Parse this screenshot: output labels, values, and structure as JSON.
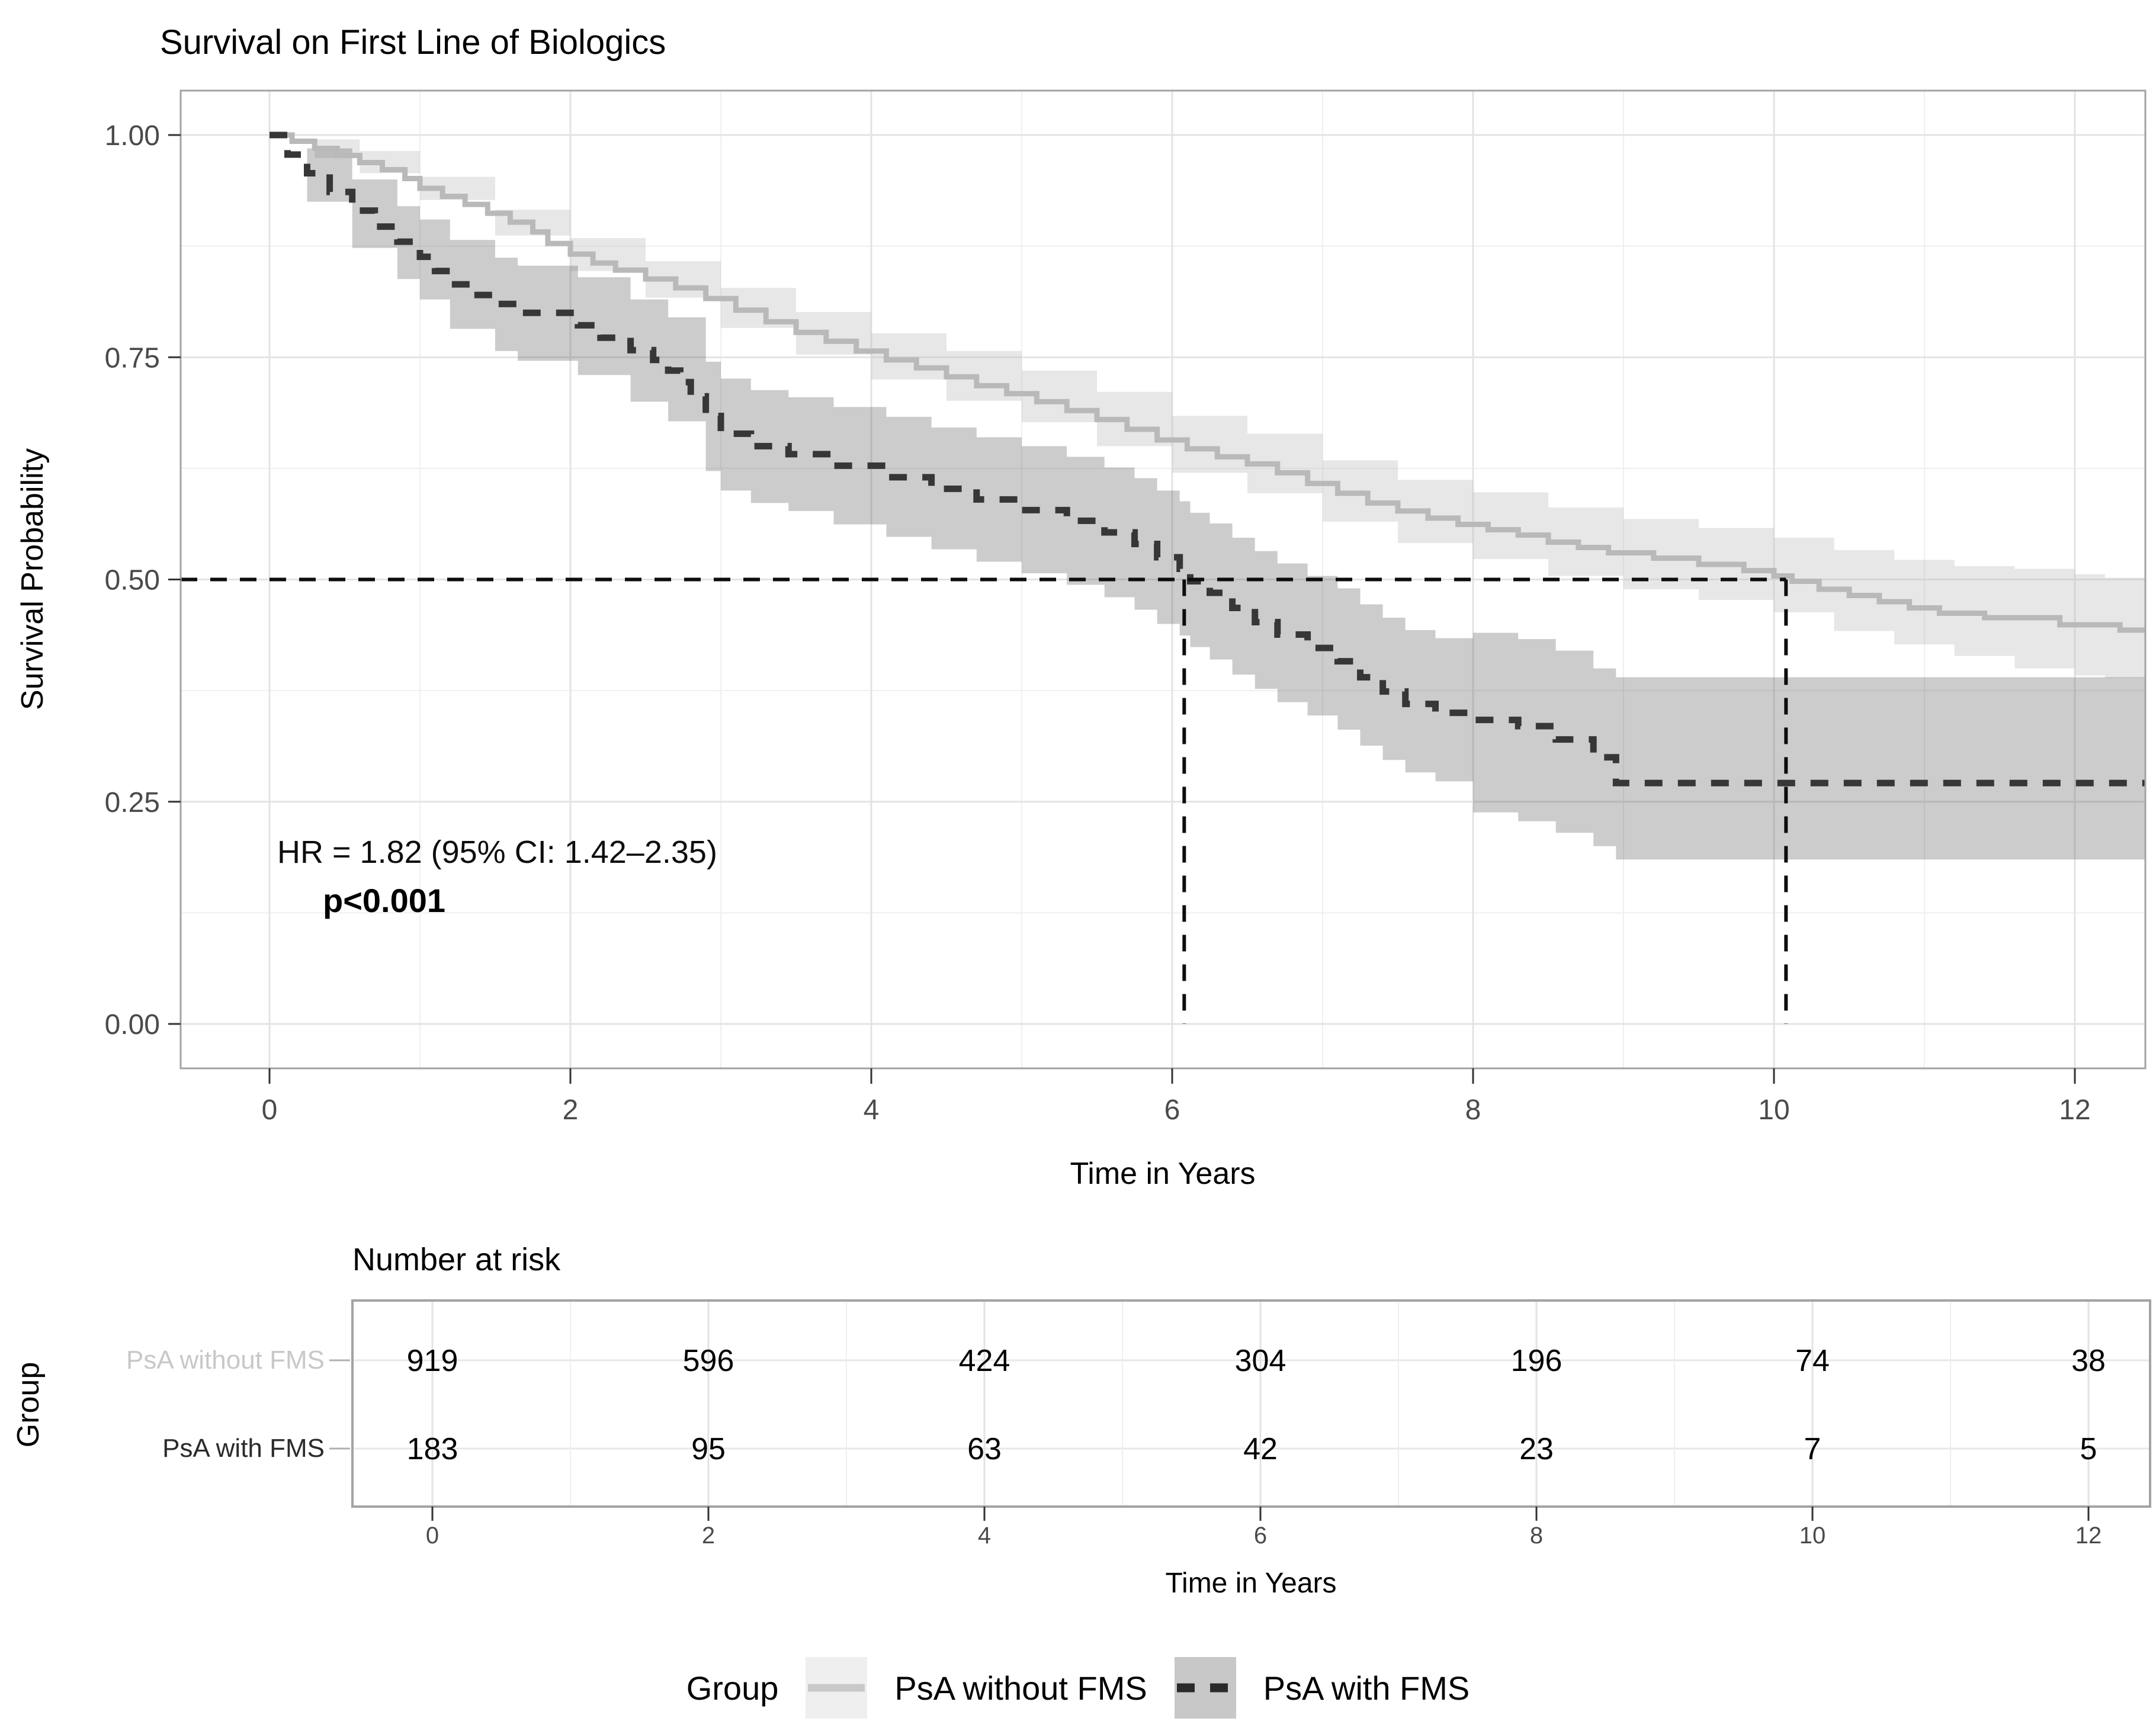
{
  "title": "Survival on First Line of Biologics",
  "axes": {
    "y_label": "Survival Probability",
    "x_label": "Time in Years",
    "y_tick_labels": [
      "1.00",
      "0.75",
      "0.50",
      "0.25",
      "0.00"
    ],
    "x_tick_labels": [
      "0",
      "2",
      "4",
      "6",
      "8",
      "10",
      "12"
    ]
  },
  "annotation": {
    "hazard_ratio": "HR = 1.82 (95% CI: 1.42–2.35)",
    "p_value": "p<0.001"
  },
  "risk_table": {
    "title": "Number at risk",
    "group_axis_label": "Group",
    "x_label": "Time in Years",
    "x_tick_labels": [
      "0",
      "2",
      "4",
      "6",
      "8",
      "10",
      "12"
    ],
    "rows": [
      {
        "label": "PsA without FMS",
        "counts": [
          "919",
          "596",
          "424",
          "304",
          "196",
          "74",
          "38"
        ]
      },
      {
        "label": "PsA with FMS",
        "counts": [
          "183",
          "95",
          "63",
          "42",
          "23",
          "7",
          "5"
        ]
      }
    ]
  },
  "legend": {
    "title": "Group",
    "items": [
      {
        "label": "PsA without FMS",
        "line_style": "solid"
      },
      {
        "label": "PsA with FMS",
        "line_style": "dashed"
      }
    ]
  },
  "colors": {
    "without_fms_line": "#b9b9b9",
    "without_fms_band": "rgba(185,185,185,0.35)",
    "with_fms_line": "#373737",
    "with_fms_band": "rgba(80,80,80,0.29)",
    "grid_major": "#e3e3e3",
    "grid_minor": "#efefef",
    "panel_border": "#a3a3a3",
    "tick_mark": "#333333",
    "tick_text": "#4a4a4a",
    "median_line": "#0d0d0d",
    "risk_count_text": "#000000",
    "risk_label_without": "#c8c8c8",
    "risk_label_with": "#2b2b2b"
  },
  "chart_data": {
    "type": "line",
    "subtype": "kaplan-meier-step",
    "title": "Survival on First Line of Biologics",
    "xlabel": "Time in Years",
    "ylabel": "Survival Probability",
    "xlim": [
      -0.59,
      12.47
    ],
    "ylim": [
      -0.05,
      1.05
    ],
    "x_major_ticks": [
      0,
      2,
      4,
      6,
      8,
      10,
      12
    ],
    "x_minor_ticks": [
      1,
      3,
      5,
      7,
      9,
      11
    ],
    "y_major_ticks": [
      0,
      0.25,
      0.5,
      0.75,
      1.0
    ],
    "y_minor_ticks": [
      0.125,
      0.375,
      0.625,
      0.875
    ],
    "grid": true,
    "legend_position": "bottom",
    "median_reference": {
      "y": 0.5,
      "median_times": [
        6.08,
        10.08
      ]
    },
    "series": [
      {
        "name": "PsA without FMS",
        "style": "solid",
        "steps": [
          [
            0,
            1.0
          ],
          [
            0.15,
            0.993
          ],
          [
            0.3,
            0.985
          ],
          [
            0.45,
            0.977
          ],
          [
            0.6,
            0.969
          ],
          [
            0.75,
            0.961
          ],
          [
            0.9,
            0.951
          ],
          [
            1.0,
            0.94
          ],
          [
            1.15,
            0.931
          ],
          [
            1.3,
            0.922
          ],
          [
            1.45,
            0.912
          ],
          [
            1.6,
            0.902
          ],
          [
            1.75,
            0.891
          ],
          [
            1.85,
            0.878
          ],
          [
            2.0,
            0.866
          ],
          [
            2.15,
            0.856
          ],
          [
            2.3,
            0.848
          ],
          [
            2.5,
            0.838
          ],
          [
            2.7,
            0.828
          ],
          [
            2.9,
            0.816
          ],
          [
            3.1,
            0.803
          ],
          [
            3.3,
            0.79
          ],
          [
            3.5,
            0.778
          ],
          [
            3.7,
            0.768
          ],
          [
            3.9,
            0.757
          ],
          [
            4.1,
            0.747
          ],
          [
            4.3,
            0.738
          ],
          [
            4.5,
            0.728
          ],
          [
            4.7,
            0.718
          ],
          [
            4.9,
            0.709
          ],
          [
            5.1,
            0.7
          ],
          [
            5.3,
            0.69
          ],
          [
            5.5,
            0.68
          ],
          [
            5.7,
            0.669
          ],
          [
            5.9,
            0.657
          ],
          [
            6.1,
            0.647
          ],
          [
            6.3,
            0.638
          ],
          [
            6.5,
            0.63
          ],
          [
            6.7,
            0.62
          ],
          [
            6.9,
            0.608
          ],
          [
            7.1,
            0.597
          ],
          [
            7.3,
            0.586
          ],
          [
            7.5,
            0.577
          ],
          [
            7.7,
            0.569
          ],
          [
            7.9,
            0.562
          ],
          [
            8.1,
            0.556
          ],
          [
            8.3,
            0.55
          ],
          [
            8.5,
            0.542
          ],
          [
            8.7,
            0.536
          ],
          [
            8.9,
            0.53
          ],
          [
            9.2,
            0.524
          ],
          [
            9.5,
            0.517
          ],
          [
            9.8,
            0.51
          ],
          [
            10.0,
            0.504
          ],
          [
            10.12,
            0.498
          ],
          [
            10.3,
            0.489
          ],
          [
            10.5,
            0.482
          ],
          [
            10.7,
            0.475
          ],
          [
            10.9,
            0.468
          ],
          [
            11.1,
            0.462
          ],
          [
            11.4,
            0.457
          ],
          [
            11.9,
            0.449
          ],
          [
            12.3,
            0.443
          ]
        ],
        "band": [
          [
            0,
            1.0,
            1.0
          ],
          [
            0.3,
            0.995,
            0.974
          ],
          [
            0.6,
            0.982,
            0.957
          ],
          [
            1.0,
            0.953,
            0.927
          ],
          [
            1.5,
            0.916,
            0.887
          ],
          [
            2.0,
            0.884,
            0.847
          ],
          [
            2.5,
            0.858,
            0.817
          ],
          [
            3.0,
            0.828,
            0.783
          ],
          [
            3.5,
            0.801,
            0.753
          ],
          [
            4.0,
            0.777,
            0.725
          ],
          [
            4.5,
            0.757,
            0.701
          ],
          [
            5.0,
            0.735,
            0.677
          ],
          [
            5.5,
            0.711,
            0.65
          ],
          [
            6.0,
            0.684,
            0.62
          ],
          [
            6.5,
            0.664,
            0.597
          ],
          [
            7.0,
            0.634,
            0.565
          ],
          [
            7.5,
            0.612,
            0.541
          ],
          [
            8.0,
            0.598,
            0.523
          ],
          [
            8.5,
            0.581,
            0.504
          ],
          [
            9.0,
            0.568,
            0.489
          ],
          [
            9.5,
            0.558,
            0.477
          ],
          [
            10.0,
            0.547,
            0.463
          ],
          [
            10.4,
            0.533,
            0.442
          ],
          [
            10.8,
            0.522,
            0.427
          ],
          [
            11.2,
            0.515,
            0.414
          ],
          [
            11.6,
            0.512,
            0.4
          ],
          [
            12.0,
            0.506,
            0.392
          ],
          [
            12.2,
            0.502,
            0.389
          ]
        ]
      },
      {
        "name": "PsA with FMS",
        "style": "dashed",
        "steps": [
          [
            0,
            1.0
          ],
          [
            0.12,
            0.978
          ],
          [
            0.25,
            0.957
          ],
          [
            0.4,
            0.936
          ],
          [
            0.55,
            0.915
          ],
          [
            0.7,
            0.897
          ],
          [
            0.85,
            0.88
          ],
          [
            1.0,
            0.863
          ],
          [
            1.1,
            0.847
          ],
          [
            1.2,
            0.832
          ],
          [
            1.35,
            0.82
          ],
          [
            1.5,
            0.81
          ],
          [
            1.65,
            0.8
          ],
          [
            2.05,
            0.786
          ],
          [
            2.2,
            0.772
          ],
          [
            2.4,
            0.758
          ],
          [
            2.55,
            0.747
          ],
          [
            2.65,
            0.735
          ],
          [
            2.73,
            0.722
          ],
          [
            2.8,
            0.706
          ],
          [
            2.9,
            0.684
          ],
          [
            3.0,
            0.664
          ],
          [
            3.2,
            0.65
          ],
          [
            3.45,
            0.641
          ],
          [
            3.75,
            0.628
          ],
          [
            4.1,
            0.615
          ],
          [
            4.4,
            0.602
          ],
          [
            4.7,
            0.59
          ],
          [
            5.0,
            0.578
          ],
          [
            5.3,
            0.566
          ],
          [
            5.55,
            0.553
          ],
          [
            5.75,
            0.54
          ],
          [
            5.9,
            0.525
          ],
          [
            6.05,
            0.512
          ],
          [
            6.12,
            0.498
          ],
          [
            6.25,
            0.485
          ],
          [
            6.4,
            0.468
          ],
          [
            6.55,
            0.452
          ],
          [
            6.7,
            0.438
          ],
          [
            6.9,
            0.423
          ],
          [
            7.1,
            0.408
          ],
          [
            7.25,
            0.39
          ],
          [
            7.4,
            0.374
          ],
          [
            7.55,
            0.36
          ],
          [
            7.75,
            0.35
          ],
          [
            8.0,
            0.342
          ],
          [
            8.3,
            0.335
          ],
          [
            8.55,
            0.32
          ],
          [
            8.8,
            0.3
          ],
          [
            8.95,
            0.271
          ]
        ],
        "band": [
          [
            0,
            1.0,
            1.0
          ],
          [
            0.25,
            0.985,
            0.925
          ],
          [
            0.55,
            0.95,
            0.873
          ],
          [
            0.85,
            0.92,
            0.838
          ],
          [
            1.0,
            0.905,
            0.815
          ],
          [
            1.2,
            0.882,
            0.782
          ],
          [
            1.5,
            0.862,
            0.757
          ],
          [
            1.65,
            0.853,
            0.746
          ],
          [
            2.05,
            0.84,
            0.73
          ],
          [
            2.4,
            0.815,
            0.7
          ],
          [
            2.65,
            0.795,
            0.678
          ],
          [
            2.9,
            0.745,
            0.622
          ],
          [
            3.0,
            0.726,
            0.6
          ],
          [
            3.2,
            0.713,
            0.586
          ],
          [
            3.45,
            0.705,
            0.577
          ],
          [
            3.75,
            0.694,
            0.562
          ],
          [
            4.1,
            0.683,
            0.548
          ],
          [
            4.4,
            0.671,
            0.534
          ],
          [
            4.7,
            0.66,
            0.52
          ],
          [
            5.0,
            0.65,
            0.507
          ],
          [
            5.3,
            0.638,
            0.494
          ],
          [
            5.55,
            0.626,
            0.48
          ],
          [
            5.75,
            0.614,
            0.466
          ],
          [
            5.9,
            0.6,
            0.45
          ],
          [
            6.05,
            0.588,
            0.437
          ],
          [
            6.12,
            0.575,
            0.424
          ],
          [
            6.25,
            0.563,
            0.41
          ],
          [
            6.4,
            0.547,
            0.393
          ],
          [
            6.55,
            0.532,
            0.377
          ],
          [
            6.7,
            0.518,
            0.362
          ],
          [
            6.9,
            0.504,
            0.347
          ],
          [
            7.1,
            0.49,
            0.331
          ],
          [
            7.25,
            0.472,
            0.313
          ],
          [
            7.4,
            0.457,
            0.297
          ],
          [
            7.55,
            0.443,
            0.283
          ],
          [
            7.75,
            0.434,
            0.273
          ],
          [
            8.0,
            0.44,
            0.238
          ],
          [
            8.3,
            0.433,
            0.228
          ],
          [
            8.55,
            0.42,
            0.215
          ],
          [
            8.8,
            0.4,
            0.2
          ],
          [
            8.95,
            0.39,
            0.185
          ]
        ]
      }
    ],
    "risk_counts": {
      "times": [
        0,
        2,
        4,
        6,
        8,
        10,
        12
      ],
      "PsA without FMS": [
        919,
        596,
        424,
        304,
        196,
        74,
        38
      ],
      "PsA with FMS": [
        183,
        95,
        63,
        42,
        23,
        7,
        5
      ]
    }
  }
}
